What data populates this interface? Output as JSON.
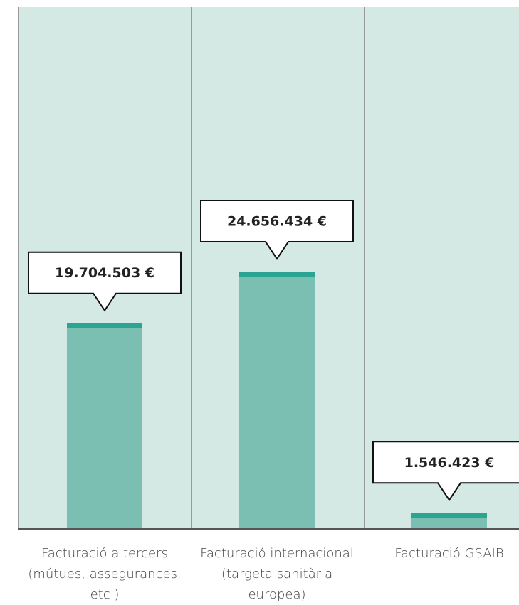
{
  "chart_data": {
    "type": "bar",
    "categories": [
      "Facturació a tercers (mútues, assegurances, etc.)",
      "Facturació internacional (targeta sanitària europea)",
      "Facturació GSAIB"
    ],
    "values": [
      19704503,
      24656434,
      1546423
    ],
    "value_labels": [
      "19.704.503 €",
      "24.656.434 €",
      "1.546.423 €"
    ],
    "color": "#7bbfb3",
    "ylim": [
      0,
      50000000
    ]
  }
}
